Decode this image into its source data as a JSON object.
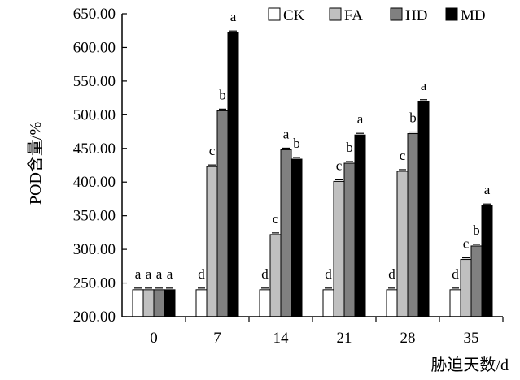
{
  "chart_data": {
    "type": "bar",
    "xlabel": "胁迫天数/d",
    "ylabel": "POD含量/%",
    "ylim": [
      200,
      650
    ],
    "yticks": [
      "200.00",
      "250.00",
      "300.00",
      "350.00",
      "400.00",
      "450.00",
      "500.00",
      "550.00",
      "600.00",
      "650.00"
    ],
    "ytick_values": [
      200,
      250,
      300,
      350,
      400,
      450,
      500,
      550,
      600,
      650
    ],
    "categories": [
      "0",
      "7",
      "14",
      "21",
      "28",
      "35"
    ],
    "legend_position": "top-right",
    "grid": false,
    "series": [
      {
        "name": "CK",
        "color": "#ffffff",
        "values": [
          240,
          240,
          240,
          240,
          240,
          240
        ],
        "labels": [
          "a",
          "d",
          "d",
          "d",
          "d",
          "d"
        ]
      },
      {
        "name": "FA",
        "color": "#c0c0c0",
        "values": [
          240,
          423,
          322,
          401,
          416,
          285
        ],
        "labels": [
          "a",
          "c",
          "c",
          "c",
          "c",
          "c"
        ]
      },
      {
        "name": "HD",
        "color": "#808080",
        "values": [
          240,
          506,
          448,
          428,
          472,
          305
        ],
        "labels": [
          "a",
          "b",
          "a",
          "b",
          "b",
          "b"
        ]
      },
      {
        "name": "MD",
        "color": "#000000",
        "values": [
          240,
          622,
          434,
          470,
          520,
          365
        ],
        "labels": [
          "a",
          "a",
          "b",
          "a",
          "a",
          "a"
        ]
      }
    ]
  }
}
